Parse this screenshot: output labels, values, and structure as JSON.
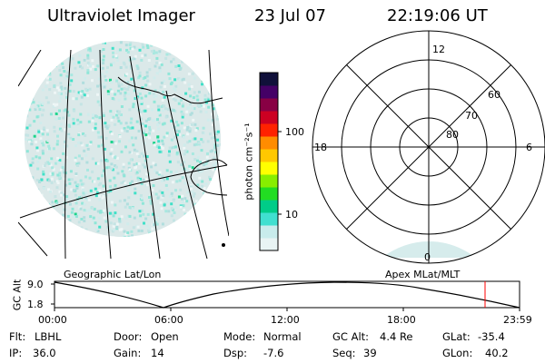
{
  "header": {
    "instrument": "Ultraviolet Imager",
    "date": "23 Jul 07",
    "time": "22:19:06 UT"
  },
  "colorbar": {
    "unit_label": "photon cm⁻²s⁻¹",
    "tick_labels": [
      "100",
      "10"
    ],
    "colors": [
      "#e8f4f4",
      "#c8ecec",
      "#40e0d0",
      "#00cc88",
      "#22dd22",
      "#88ee00",
      "#ffff00",
      "#ffc800",
      "#ff8c00",
      "#ff2200",
      "#cc0022",
      "#880044",
      "#440066",
      "#10103a"
    ]
  },
  "left_panel": {
    "label": "Geographic Lat/Lon"
  },
  "right_panel": {
    "label": "Apex MLat/MLT",
    "clock_labels": {
      "top": "12",
      "left": "18",
      "right": "6",
      "bottom": "0"
    },
    "ring_labels": [
      "60",
      "70",
      "80"
    ]
  },
  "altitude_plot": {
    "ylabel": "GC Alt",
    "ytick_top": "9.0",
    "ytick_bottom": "1.8",
    "xticks": [
      "00:00",
      "06:00",
      "12:00",
      "18:00",
      "23:59"
    ],
    "marker_color": "#ff0000"
  },
  "info": {
    "flt_label": "Flt:",
    "flt_value": "LBHL",
    "ip_label": "IP:",
    "ip_value": "36.0",
    "door_label": "Door:",
    "door_value": "Open",
    "gain_label": "Gain:",
    "gain_value": "14",
    "mode_label": "Mode:",
    "mode_value": "Normal",
    "dsp_label": "Dsp:",
    "dsp_value": "-7.6",
    "gcalt_label": "GC Alt:",
    "gcalt_value": "4.4 Re",
    "seq_label": "Seq:",
    "seq_value": "39",
    "glat_label": "GLat:",
    "glat_value": "-35.4",
    "glon_label": "GLon:",
    "glon_value": "40.2"
  }
}
